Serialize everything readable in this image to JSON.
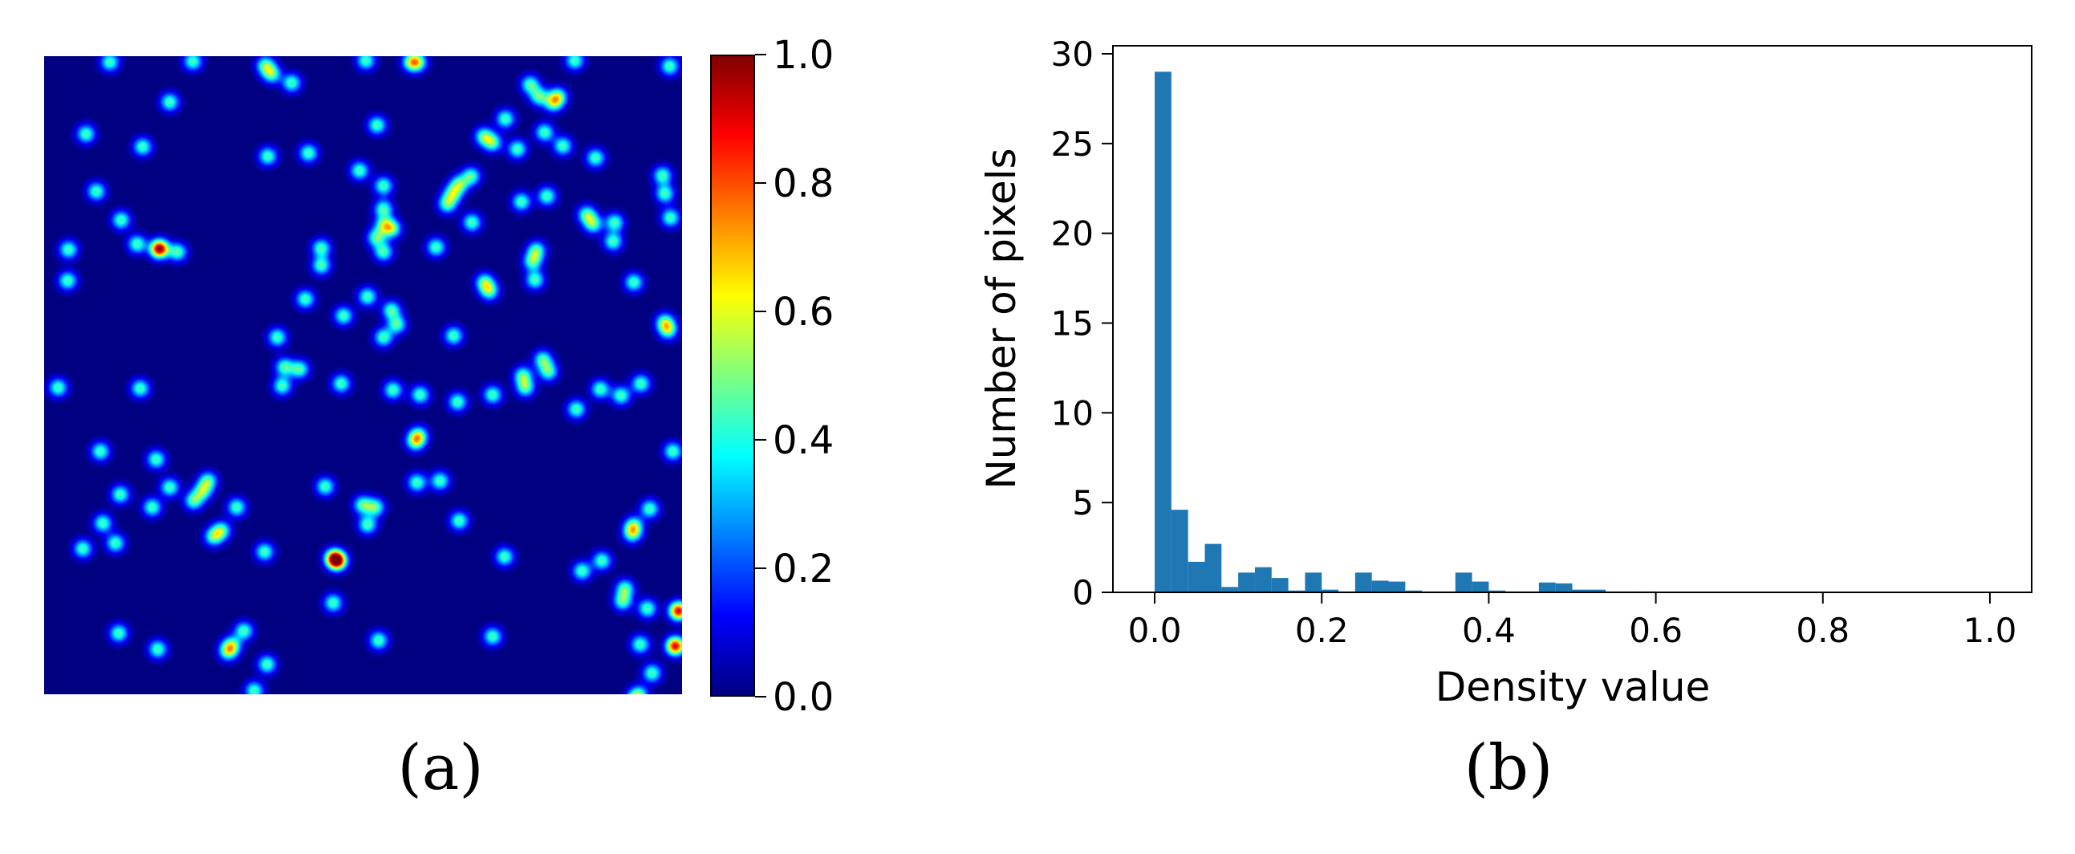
{
  "panel_a": {
    "caption": "(a)",
    "colorbar": {
      "colormap": "jet",
      "range": [
        0,
        1
      ],
      "tick_labels": [
        "0.0",
        "0.2",
        "0.4",
        "0.6",
        "0.8",
        "1.0"
      ]
    }
  },
  "panel_b": {
    "caption": "(b)"
  },
  "chart_data": [
    {
      "type": "heatmap",
      "panel": "a",
      "title": "",
      "colormap": "jet",
      "value_range": [
        0,
        1
      ],
      "background_value": 0.0,
      "note_values": "density map of isolated blobs; most blobs peak near 0.4-0.5, some overlapping pairs peak near 0.7-1.0",
      "colorbar_ticks": [
        0.0,
        0.2,
        0.4,
        0.6,
        0.8,
        1.0
      ]
    },
    {
      "type": "bar",
      "panel": "b",
      "title": "",
      "xlabel": "Density value",
      "ylabel": "Number of pixels",
      "xlim": [
        -0.05,
        1.05
      ],
      "ylim": [
        0,
        30
      ],
      "xticks": [
        "0.0",
        "0.2",
        "0.4",
        "0.6",
        "0.8",
        "1.0"
      ],
      "yticks": [
        "0",
        "5",
        "10",
        "15",
        "20",
        "25",
        "30"
      ],
      "bin_width": 0.02,
      "bin_starts": [
        0.0,
        0.02,
        0.04,
        0.06,
        0.08,
        0.1,
        0.12,
        0.14,
        0.16,
        0.18,
        0.2,
        0.22,
        0.24,
        0.26,
        0.28,
        0.3,
        0.32,
        0.34,
        0.36,
        0.38,
        0.4,
        0.42,
        0.44,
        0.46,
        0.48,
        0.5,
        0.52,
        0.54,
        0.56,
        0.58
      ],
      "values": [
        29.0,
        4.6,
        1.7,
        2.7,
        0.3,
        1.1,
        1.4,
        0.8,
        0.1,
        1.1,
        0.15,
        0.05,
        1.1,
        0.65,
        0.6,
        0.1,
        0.05,
        0.05,
        1.1,
        0.6,
        0.1,
        0.05,
        0.05,
        0.55,
        0.5,
        0.15,
        0.15,
        0.05,
        0.05,
        0.05
      ],
      "bar_color": "#1f77b4"
    }
  ]
}
